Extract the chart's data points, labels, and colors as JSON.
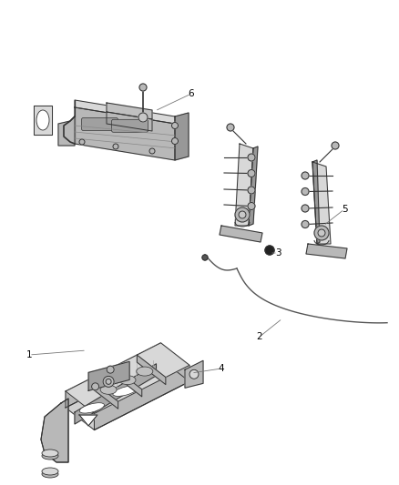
{
  "background_color": "#ffffff",
  "fig_width": 4.38,
  "fig_height": 5.33,
  "dpi": 100,
  "line_color": "#777777",
  "line_lw": 0.6,
  "label_fontsize": 7.5,
  "label_color": "#000000",
  "part_edge_color": "#333333",
  "part_fill_light": "#d8d8d8",
  "part_fill_mid": "#b8b8b8",
  "part_fill_dark": "#989898",
  "wire_color": "#555555"
}
